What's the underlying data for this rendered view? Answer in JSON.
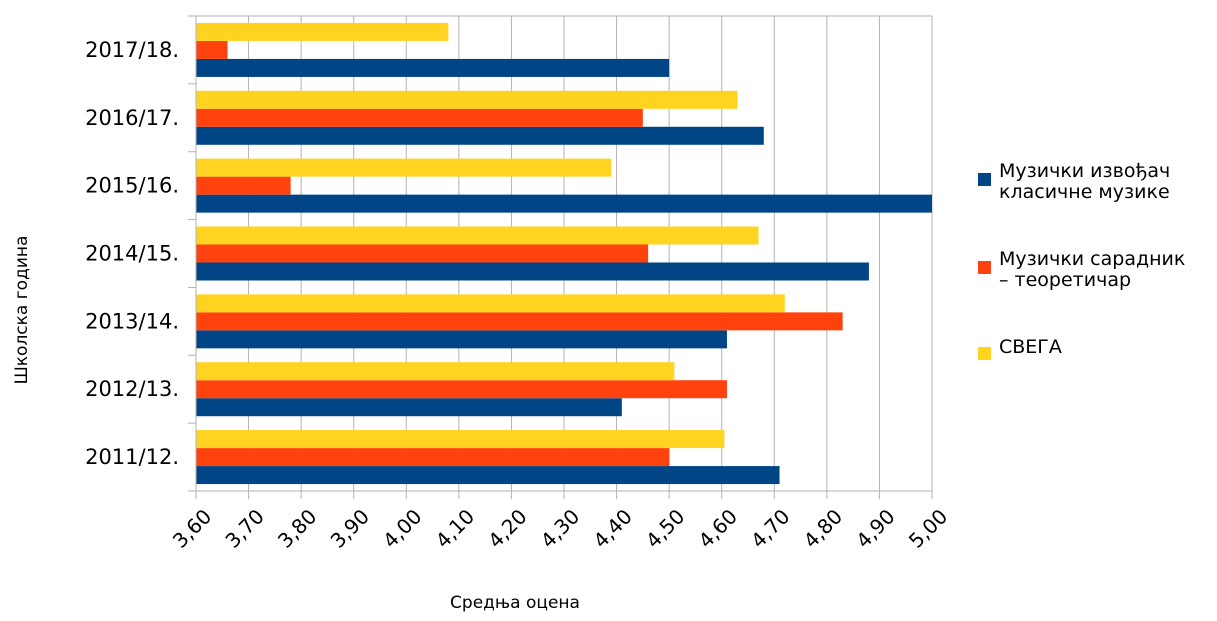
{
  "chart_data": {
    "type": "bar",
    "orientation": "horizontal",
    "title": "",
    "xlabel": "Средња оцена",
    "ylabel": "Школска година",
    "xlim": [
      3.6,
      5.0
    ],
    "x_ticks": [
      "3,60",
      "3,70",
      "3,80",
      "3,90",
      "4,00",
      "4,10",
      "4,20",
      "4,30",
      "4,40",
      "4,50",
      "4,60",
      "4,70",
      "4,80",
      "4,90",
      "5,00"
    ],
    "x_tick_values": [
      3.6,
      3.7,
      3.8,
      3.9,
      4.0,
      4.1,
      4.2,
      4.3,
      4.4,
      4.5,
      4.6,
      4.7,
      4.8,
      4.9,
      5.0
    ],
    "categories": [
      "2011/12.",
      "2012/13.",
      "2013/14.",
      "2014/15.",
      "2015/16.",
      "2016/17.",
      "2017/18."
    ],
    "series": [
      {
        "name": "Музички извођач класичне музике",
        "legend_lines": [
          "Музички извођач",
          "класичне музике"
        ],
        "color": "#004586",
        "values": [
          4.71,
          4.41,
          4.61,
          4.88,
          5.0,
          4.68,
          4.5
        ]
      },
      {
        "name": "Музички сарадник – теоретичар",
        "legend_lines": [
          "Музички сарадник",
          "– теоретичар"
        ],
        "color": "#ff420e",
        "values": [
          4.5,
          4.61,
          4.83,
          4.46,
          3.78,
          4.45,
          3.66
        ]
      },
      {
        "name": "СВЕГА",
        "legend_lines": [
          "СВЕГА"
        ],
        "color": "#ffd320",
        "values": [
          4.605,
          4.51,
          4.72,
          4.67,
          4.39,
          4.63,
          4.08
        ]
      }
    ],
    "grid": true,
    "legend_position": "right"
  }
}
